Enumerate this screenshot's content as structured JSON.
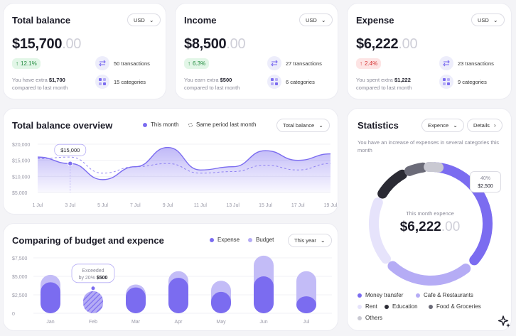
{
  "cards": [
    {
      "title": "Total balance",
      "currency": "USD",
      "amount_main": "$15,700",
      "amount_cents": ".00",
      "badge": "12.1%",
      "badge_dir": "up",
      "note_prefix": "You have extra",
      "note_value": "$1,700",
      "note_suffix": "compared to last month",
      "transactions": "50 transactions",
      "categories": "15 categories"
    },
    {
      "title": "Income",
      "currency": "USD",
      "amount_main": "$8,500",
      "amount_cents": ".00",
      "badge": "6.3%",
      "badge_dir": "up",
      "note_prefix": "You earn extra",
      "note_value": "$500",
      "note_suffix": "compared to last month",
      "transactions": "27 transactions",
      "categories": "6 categories"
    },
    {
      "title": "Expense",
      "currency": "USD",
      "amount_main": "$6,222",
      "amount_cents": ".00",
      "badge": "2.4%",
      "badge_dir": "down",
      "note_prefix": "You spent extra",
      "note_value": "$1,222",
      "note_suffix": "compared to last month",
      "transactions": "23 transactions",
      "categories": "9 categories"
    }
  ],
  "overview": {
    "title": "Total balance overview",
    "legend_this": "This month",
    "legend_last": "Same period last month",
    "dropdown": "Total balance",
    "tooltip": "$15,000",
    "chart_data": {
      "type": "area",
      "x": [
        "1 Jul",
        "3 Jul",
        "5 Jul",
        "7 Jul",
        "9 Jul",
        "11 Jul",
        "13 Jul",
        "15 Jul",
        "17 Jul",
        "19 Jul"
      ],
      "yticks": [
        "$20,000",
        "$15,000",
        "$10,000",
        "$5,000"
      ],
      "ylim": [
        5000,
        20000
      ],
      "series": [
        {
          "name": "This month",
          "values": [
            16000,
            14000,
            9000,
            13000,
            19000,
            12000,
            13000,
            18000,
            15000,
            17000
          ]
        },
        {
          "name": "Same period last month",
          "values": [
            15500,
            16000,
            11000,
            13000,
            14000,
            11000,
            11500,
            13500,
            12000,
            14000
          ]
        }
      ]
    }
  },
  "budget": {
    "title": "Comparing of budget and expence",
    "legend_expense": "Expense",
    "legend_budget": "Budget",
    "dropdown": "This year",
    "tooltip_line1": "Exceeded",
    "tooltip_line2a": "by 20%",
    "tooltip_line2b": "$500",
    "chart_data": {
      "type": "bar",
      "categories": [
        "Jan",
        "Feb",
        "Mar",
        "Apr",
        "May",
        "Jun",
        "Jul"
      ],
      "yticks": [
        "$7,500",
        "$5,000",
        "$2,500",
        "0"
      ],
      "ylim": [
        0,
        7500
      ],
      "series": [
        {
          "name": "Expense",
          "values": [
            4200,
            3000,
            3500,
            4800,
            2900,
            5000,
            2300
          ]
        },
        {
          "name": "Budget",
          "values": [
            5200,
            2500,
            3900,
            5700,
            4400,
            7800,
            5700
          ]
        }
      ]
    }
  },
  "statistics": {
    "title": "Statistics",
    "dropdown": "Expence",
    "details": "Details",
    "description": "You have an increase of expenses in several categories this month",
    "center_label": "This month expence",
    "center_main": "$6,222",
    "center_cents": ".00",
    "callout_pct": "40%",
    "callout_value": "$2,500",
    "legend": [
      {
        "label": "Money transfer",
        "color": "#7b6cf0"
      },
      {
        "label": "Cafe & Restaurants",
        "color": "#b5acf5"
      },
      {
        "label": "Rent",
        "color": "#e6e3fb"
      },
      {
        "label": "Education",
        "color": "#2b2b34"
      },
      {
        "label": "Food & Groceries",
        "color": "#6b6b78"
      },
      {
        "label": "Others",
        "color": "#c9c9d2"
      }
    ]
  }
}
